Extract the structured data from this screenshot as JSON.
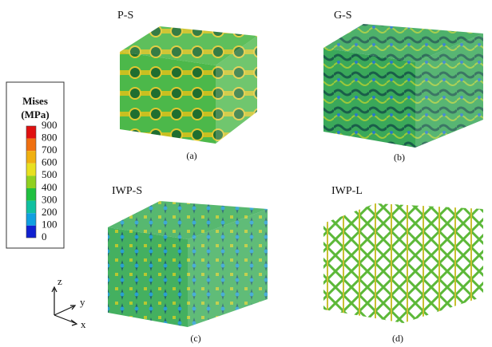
{
  "legend": {
    "title": "Mises",
    "unit": "(MPa)",
    "ticks": [
      900,
      800,
      700,
      600,
      500,
      400,
      300,
      200,
      100,
      0
    ]
  },
  "panels": [
    {
      "name": "P-S",
      "caption": "(a)"
    },
    {
      "name": "G-S",
      "caption": "(b)"
    },
    {
      "name": "IWP-S",
      "caption": "(c)"
    },
    {
      "name": "IWP-L",
      "caption": "(d)"
    }
  ],
  "axes": {
    "z": "z",
    "y": "y",
    "x": "x"
  }
}
